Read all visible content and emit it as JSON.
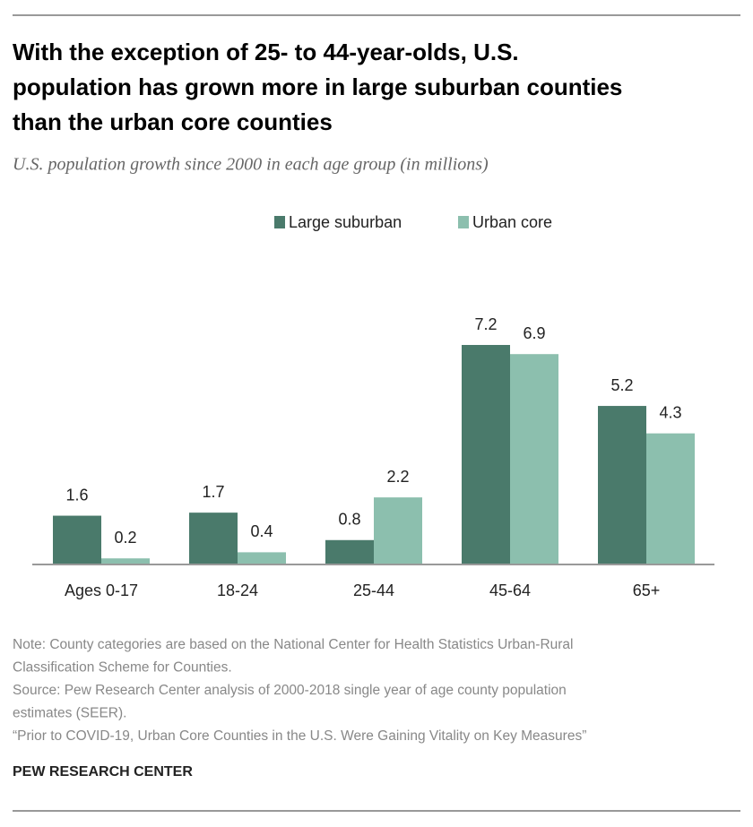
{
  "chart_data": {
    "type": "bar",
    "title": [
      "With the exception of 25- to 44-year-olds, U.S.",
      "population has grown more in large suburban counties",
      "than the urban core counties"
    ],
    "subtitle": "U.S. population growth since 2000 in each age group (in millions)",
    "categories": [
      "Ages 0-17",
      "18-24",
      "25-44",
      "45-64",
      "65+"
    ],
    "series": [
      {
        "name": "Large suburban",
        "color": "#4a7a6b",
        "values": [
          1.6,
          1.7,
          0.8,
          7.2,
          5.2
        ]
      },
      {
        "name": "Urban core",
        "color": "#8cbfae",
        "values": [
          0.2,
          0.4,
          2.2,
          6.9,
          4.3
        ]
      }
    ],
    "notes": [
      "Note: County categories are based on the National Center for Health Statistics Urban-Rural",
      "Classification Scheme for Counties.",
      "Source: Pew Research Center analysis of 2000-2018 single year of age county population",
      "estimates (SEER).",
      "“Prior to COVID-19, Urban Core Counties in the U.S. Were Gaining Vitality on Key Measures”"
    ],
    "footer": "PEW RESEARCH CENTER"
  }
}
